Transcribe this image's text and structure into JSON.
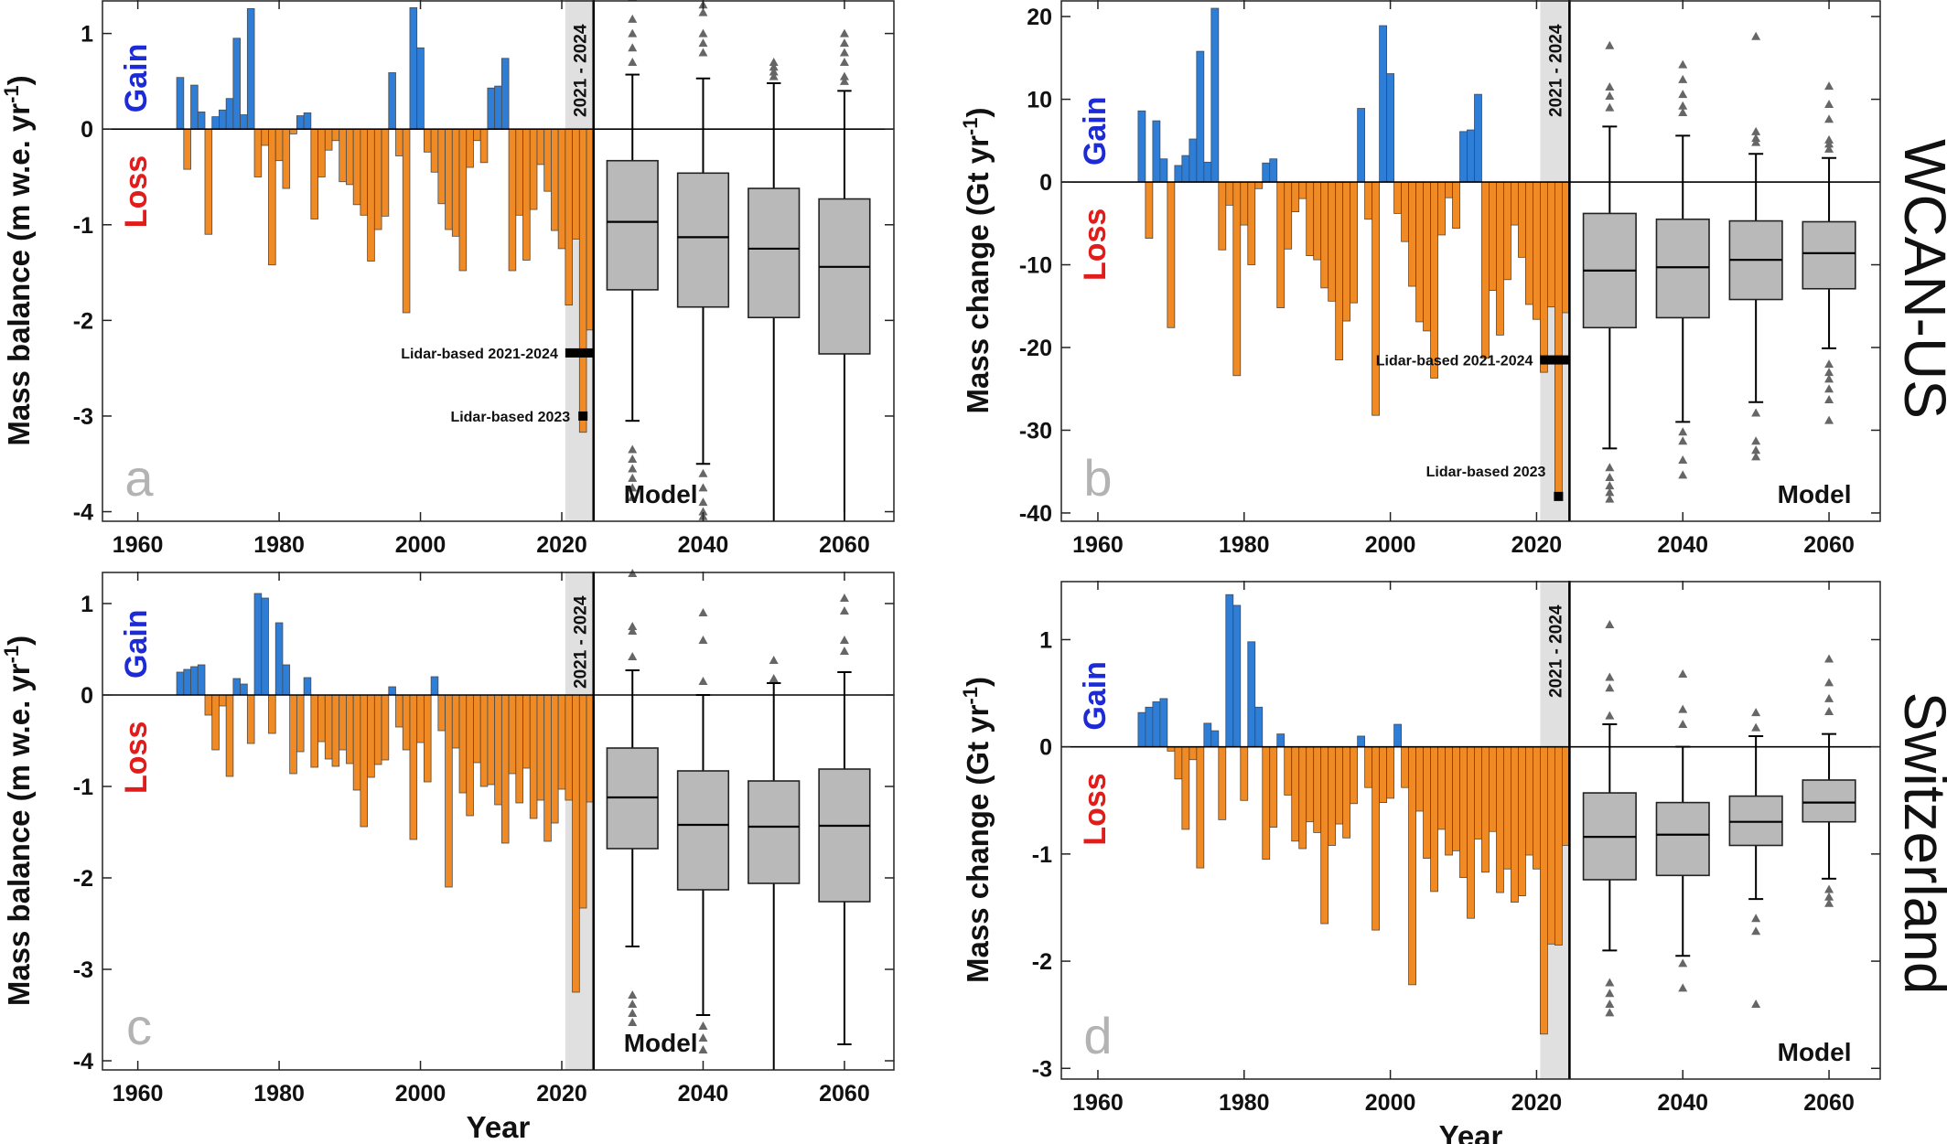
{
  "chart_data": [
    {
      "type": "bar",
      "panel": "a",
      "ylabel": "Mass balance (m w.e. yr-1)",
      "xlabel": "",
      "ylim": [
        -4.1,
        1.35
      ],
      "xlim": [
        1955,
        2067
      ],
      "xticks": [
        "1960",
        "1980",
        "2000",
        "2020",
        "2040",
        "2060"
      ],
      "yticks": [
        "1",
        "0",
        "-1",
        "-2",
        "-3",
        "-4"
      ],
      "gain_label": "Gain",
      "loss_label": "Loss",
      "period_label": "2021 - 2024",
      "model_label": "Model",
      "annotations": [
        {
          "text": "Lidar-based 2021-2024",
          "x0": 2021,
          "x1": 2024,
          "y": -2.34,
          "kind": "bar"
        },
        {
          "text": "Lidar-based 2023",
          "x": 2023,
          "y": -3.0,
          "kind": "square"
        }
      ],
      "x": [
        1966,
        1967,
        1968,
        1969,
        1970,
        1971,
        1972,
        1973,
        1974,
        1975,
        1976,
        1977,
        1978,
        1979,
        1980,
        1981,
        1982,
        1983,
        1984,
        1985,
        1986,
        1987,
        1988,
        1989,
        1990,
        1991,
        1992,
        1993,
        1994,
        1995,
        1996,
        1997,
        1998,
        1999,
        2000,
        2001,
        2002,
        2003,
        2004,
        2005,
        2006,
        2007,
        2008,
        2009,
        2010,
        2011,
        2012,
        2013,
        2014,
        2015,
        2016,
        2017,
        2018,
        2019,
        2020,
        2021,
        2022,
        2023,
        2024
      ],
      "values": [
        0.54,
        -0.42,
        0.46,
        0.18,
        -1.1,
        0.13,
        0.2,
        0.32,
        0.95,
        0.15,
        1.26,
        -0.5,
        -0.17,
        -1.42,
        -0.33,
        -0.62,
        -0.05,
        0.14,
        0.17,
        -0.94,
        -0.5,
        -0.22,
        -0.12,
        -0.55,
        -0.58,
        -0.79,
        -0.9,
        -1.38,
        -1.05,
        -0.91,
        0.59,
        -0.28,
        -1.92,
        1.27,
        0.85,
        -0.24,
        -0.45,
        -0.78,
        -1.05,
        -1.12,
        -1.48,
        -0.4,
        -0.12,
        -0.35,
        0.43,
        0.45,
        0.74,
        -1.48,
        -0.9,
        -1.37,
        -0.84,
        -0.37,
        -0.65,
        -1.06,
        -1.25,
        -1.84,
        -1.15,
        -3.17,
        -2.1
      ],
      "boxes": [
        {
          "x": 2030,
          "q1": -1.68,
          "median": -0.97,
          "q3": -0.33,
          "wlo": -3.05,
          "whi": 0.57,
          "outliers_hi": [
            0.7,
            0.85,
            1.0,
            1.15,
            1.38
          ],
          "outliers_lo": [
            -3.35,
            -3.45,
            -3.55,
            -3.65,
            -3.75,
            -3.85
          ]
        },
        {
          "x": 2040,
          "q1": -1.86,
          "median": -1.13,
          "q3": -0.46,
          "wlo": -3.5,
          "whi": 0.53,
          "outliers_hi": [
            0.8,
            0.9,
            1.0,
            1.22,
            1.3
          ],
          "outliers_lo": [
            -3.6,
            -3.75,
            -3.9,
            -4.0,
            -4.05
          ]
        },
        {
          "x": 2050,
          "q1": -1.97,
          "median": -1.25,
          "q3": -0.62,
          "wlo": -4.1,
          "whi": 0.48,
          "outliers_hi": [
            0.55,
            0.6,
            0.65,
            0.7
          ],
          "outliers_lo": []
        },
        {
          "x": 2060,
          "q1": -2.35,
          "median": -1.44,
          "q3": -0.73,
          "wlo": -4.1,
          "whi": 0.4,
          "outliers_hi": [
            0.5,
            0.55,
            0.7,
            0.8,
            0.9,
            1.0
          ],
          "outliers_lo": []
        }
      ]
    },
    {
      "type": "bar",
      "panel": "b",
      "ylabel": "Mass change (Gt yr-1)",
      "xlabel": "",
      "ylim": [
        -41,
        22
      ],
      "xlim": [
        1955,
        2067
      ],
      "xticks": [
        "1960",
        "1980",
        "2000",
        "2020",
        "2040",
        "2060"
      ],
      "yticks": [
        "20",
        "10",
        "0",
        "-10",
        "-20",
        "-30",
        "-40"
      ],
      "gain_label": "Gain",
      "loss_label": "Loss",
      "period_label": "2021 - 2024",
      "model_label": "Model",
      "annotations": [
        {
          "text": "Lidar-based 2021-2024",
          "x0": 2021,
          "x1": 2024,
          "y": -21.5,
          "kind": "bar"
        },
        {
          "text": "Lidar-based 2023",
          "x": 2023,
          "y": -38.0,
          "kind": "square"
        }
      ],
      "x": [
        1966,
        1967,
        1968,
        1969,
        1970,
        1971,
        1972,
        1973,
        1974,
        1975,
        1976,
        1977,
        1978,
        1979,
        1980,
        1981,
        1982,
        1983,
        1984,
        1985,
        1986,
        1987,
        1988,
        1989,
        1990,
        1991,
        1992,
        1993,
        1994,
        1995,
        1996,
        1997,
        1998,
        1999,
        2000,
        2001,
        2002,
        2003,
        2004,
        2005,
        2006,
        2007,
        2008,
        2009,
        2010,
        2011,
        2012,
        2013,
        2014,
        2015,
        2016,
        2017,
        2018,
        2019,
        2020,
        2021,
        2022,
        2023,
        2024
      ],
      "values": [
        8.6,
        -6.8,
        7.4,
        2.8,
        -17.6,
        2.0,
        3.2,
        5.2,
        15.8,
        2.4,
        21.0,
        -8.2,
        -2.8,
        -23.4,
        -5.2,
        -10.0,
        -0.8,
        2.3,
        2.8,
        -15.2,
        -8.1,
        -3.6,
        -2.0,
        -8.9,
        -9.4,
        -12.8,
        -14.4,
        -21.5,
        -16.8,
        -14.6,
        8.9,
        -4.5,
        -28.2,
        18.9,
        13.1,
        -3.8,
        -7.2,
        -12.6,
        -16.9,
        -18.0,
        -23.7,
        -6.4,
        -1.9,
        -5.6,
        6.1,
        6.3,
        10.6,
        -21.3,
        -13.1,
        -18.5,
        -11.8,
        -5.2,
        -9.1,
        -14.8,
        -16.6,
        -23.0,
        -15.1,
        -38.0,
        -15.8
      ],
      "boxes": [
        {
          "x": 2030,
          "q1": -17.6,
          "median": -10.7,
          "q3": -3.8,
          "wlo": -32.2,
          "whi": 6.7,
          "outliers_hi": [
            9.0,
            10.4,
            11.5,
            16.5
          ],
          "outliers_lo": [
            -34.5,
            -35.7,
            -36.7,
            -37.5,
            -38.3
          ]
        },
        {
          "x": 2040,
          "q1": -16.4,
          "median": -10.3,
          "q3": -4.5,
          "wlo": -29.0,
          "whi": 5.6,
          "outliers_hi": [
            8.4,
            9.2,
            10.6,
            12.4,
            14.2
          ],
          "outliers_lo": [
            -30.2,
            -31.3,
            -33.6,
            -35.4
          ]
        },
        {
          "x": 2050,
          "q1": -14.2,
          "median": -9.4,
          "q3": -4.7,
          "wlo": -26.6,
          "whi": 3.4,
          "outliers_hi": [
            4.8,
            5.3,
            6.1,
            17.6
          ],
          "outliers_lo": [
            -27.9,
            -31.3,
            -32.4,
            -33.2
          ]
        },
        {
          "x": 2060,
          "q1": -12.9,
          "median": -8.6,
          "q3": -4.8,
          "wlo": -20.1,
          "whi": 2.9,
          "outliers_hi": [
            4.0,
            4.6,
            5.1,
            7.6,
            9.4,
            11.6
          ],
          "outliers_lo": [
            -22.0,
            -23.0,
            -23.8,
            -25.0,
            -26.3,
            -28.8
          ]
        }
      ]
    },
    {
      "type": "bar",
      "panel": "c",
      "ylabel": "Mass balance (m w.e. yr-1)",
      "xlabel": "Year",
      "ylim": [
        -4.1,
        1.35
      ],
      "xlim": [
        1955,
        2067
      ],
      "xticks": [
        "1960",
        "1980",
        "2000",
        "2020",
        "2040",
        "2060"
      ],
      "yticks": [
        "1",
        "0",
        "-1",
        "-2",
        "-3",
        "-4"
      ],
      "gain_label": "Gain",
      "loss_label": "Loss",
      "period_label": "2021 - 2024",
      "model_label": "Model",
      "annotations": [],
      "x": [
        1966,
        1967,
        1968,
        1969,
        1970,
        1971,
        1972,
        1973,
        1974,
        1975,
        1976,
        1977,
        1978,
        1979,
        1980,
        1981,
        1982,
        1983,
        1984,
        1985,
        1986,
        1987,
        1988,
        1989,
        1990,
        1991,
        1992,
        1993,
        1994,
        1995,
        1996,
        1997,
        1998,
        1999,
        2000,
        2001,
        2002,
        2003,
        2004,
        2005,
        2006,
        2007,
        2008,
        2009,
        2010,
        2011,
        2012,
        2013,
        2014,
        2015,
        2016,
        2017,
        2018,
        2019,
        2020,
        2021,
        2022,
        2023,
        2024
      ],
      "values": [
        0.25,
        0.28,
        0.31,
        0.33,
        -0.22,
        -0.6,
        -0.12,
        -0.89,
        0.18,
        0.12,
        -0.53,
        1.11,
        1.06,
        -0.42,
        0.79,
        0.33,
        -0.86,
        -0.62,
        0.19,
        -0.79,
        -0.51,
        -0.7,
        -0.78,
        -0.6,
        -0.75,
        -1.04,
        -1.44,
        -0.9,
        -0.76,
        -0.71,
        0.09,
        -0.35,
        -0.6,
        -1.58,
        -0.52,
        -0.95,
        0.2,
        -0.39,
        -2.1,
        -0.58,
        -1.07,
        -1.32,
        -0.74,
        -1.0,
        -0.98,
        -1.2,
        -1.62,
        -0.86,
        -1.18,
        -0.8,
        -1.35,
        -1.15,
        -1.6,
        -1.4,
        -1.03,
        -1.15,
        -3.25,
        -2.33,
        -1.17
      ],
      "boxes": [
        {
          "x": 2030,
          "q1": -1.68,
          "median": -1.12,
          "q3": -0.58,
          "wlo": -2.75,
          "whi": 0.27,
          "outliers_hi": [
            0.42,
            0.7,
            0.75,
            1.33
          ],
          "outliers_lo": [
            -3.28,
            -3.38,
            -3.48,
            -3.58
          ]
        },
        {
          "x": 2040,
          "q1": -2.13,
          "median": -1.42,
          "q3": -0.83,
          "wlo": -3.5,
          "whi": 0.0,
          "outliers_hi": [
            0.15,
            0.6,
            0.9
          ],
          "outliers_lo": [
            -3.62,
            -3.75,
            -3.88
          ]
        },
        {
          "x": 2050,
          "q1": -2.06,
          "median": -1.44,
          "q3": -0.94,
          "wlo": -4.1,
          "whi": 0.13,
          "outliers_hi": [
            0.18,
            0.38
          ],
          "outliers_lo": []
        },
        {
          "x": 2060,
          "q1": -2.26,
          "median": -1.43,
          "q3": -0.81,
          "wlo": -3.82,
          "whi": 0.25,
          "outliers_hi": [
            0.48,
            0.6,
            0.92,
            1.06
          ],
          "outliers_lo": []
        }
      ]
    },
    {
      "type": "bar",
      "panel": "d",
      "ylabel": "Mass change (Gt yr-1)",
      "xlabel": "Year",
      "ylim": [
        -3.1,
        1.55
      ],
      "xlim": [
        1955,
        2067
      ],
      "xticks": [
        "1960",
        "1980",
        "2000",
        "2020",
        "2040",
        "2060"
      ],
      "yticks": [
        "1",
        "0",
        "-1",
        "-2",
        "-3"
      ],
      "gain_label": "Gain",
      "loss_label": "Loss",
      "period_label": "2021 - 2024",
      "model_label": "Model",
      "annotations": [],
      "x": [
        1966,
        1967,
        1968,
        1969,
        1970,
        1971,
        1972,
        1973,
        1974,
        1975,
        1976,
        1977,
        1978,
        1979,
        1980,
        1981,
        1982,
        1983,
        1984,
        1985,
        1986,
        1987,
        1988,
        1989,
        1990,
        1991,
        1992,
        1993,
        1994,
        1995,
        1996,
        1997,
        1998,
        1999,
        2000,
        2001,
        2002,
        2003,
        2004,
        2005,
        2006,
        2007,
        2008,
        2009,
        2010,
        2011,
        2012,
        2013,
        2014,
        2015,
        2016,
        2017,
        2018,
        2019,
        2020,
        2021,
        2022,
        2023,
        2024
      ],
      "values": [
        0.32,
        0.37,
        0.42,
        0.45,
        -0.04,
        -0.3,
        -0.77,
        -0.12,
        -1.13,
        0.22,
        0.15,
        -0.68,
        1.42,
        1.32,
        -0.5,
        0.98,
        0.37,
        -1.05,
        -0.75,
        0.12,
        -0.45,
        -0.88,
        -0.95,
        -0.7,
        -0.8,
        -1.65,
        -0.92,
        -0.72,
        -0.85,
        -0.53,
        0.1,
        -0.38,
        -1.71,
        -0.52,
        -0.48,
        0.21,
        -0.38,
        -2.22,
        -0.6,
        -1.04,
        -1.35,
        -0.77,
        -1.01,
        -0.97,
        -1.22,
        -1.6,
        -0.86,
        -1.17,
        -0.79,
        -1.36,
        -1.14,
        -1.45,
        -1.39,
        -1.01,
        -1.14,
        -2.68,
        -1.84,
        -1.85,
        -0.92
      ],
      "boxes": [
        {
          "x": 2030,
          "q1": -1.24,
          "median": -0.84,
          "q3": -0.43,
          "wlo": -1.9,
          "whi": 0.21,
          "outliers_hi": [
            0.29,
            0.55,
            0.65,
            1.14
          ],
          "outliers_lo": [
            -2.2,
            -2.3,
            -2.4,
            -2.48
          ]
        },
        {
          "x": 2040,
          "q1": -1.2,
          "median": -0.82,
          "q3": -0.52,
          "wlo": -1.95,
          "whi": 0.0,
          "outliers_hi": [
            0.21,
            0.35,
            0.68
          ],
          "outliers_lo": [
            -2.02,
            -2.25
          ]
        },
        {
          "x": 2050,
          "q1": -0.92,
          "median": -0.7,
          "q3": -0.46,
          "wlo": -1.42,
          "whi": 0.1,
          "outliers_hi": [
            0.18,
            0.32
          ],
          "outliers_lo": [
            -1.6,
            -1.72,
            -2.4
          ]
        },
        {
          "x": 2060,
          "q1": -0.7,
          "median": -0.52,
          "q3": -0.31,
          "wlo": -1.23,
          "whi": 0.12,
          "outliers_hi": [
            0.33,
            0.45,
            0.6,
            0.82
          ],
          "outliers_lo": [
            -1.33,
            -1.4,
            -1.46
          ]
        }
      ]
    }
  ],
  "regions": {
    "top": "WCAN-US",
    "bottom": "Switzerland"
  },
  "colors": {
    "gain": "#2e7dd6",
    "loss": "#ef8a24",
    "box": "#b9b9b9",
    "period_shade": "#e0e0e0",
    "panel_letter": "#b3b3b3",
    "gain_text": "#1d2bd6",
    "loss_text": "#e21b1b"
  }
}
